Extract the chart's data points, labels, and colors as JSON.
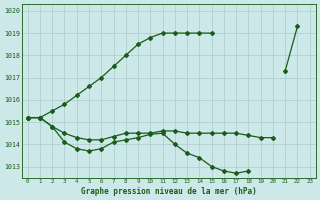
{
  "title": "Graphe pression niveau de la mer (hPa)",
  "background_color": "#cce8e8",
  "grid_color": "#aacccc",
  "line_color": "#1a5c1a",
  "ylim": [
    1012.5,
    1020.3
  ],
  "y_ticks": [
    1013,
    1014,
    1015,
    1016,
    1017,
    1018,
    1019,
    1020
  ],
  "x_ticks": [
    0,
    1,
    2,
    3,
    4,
    5,
    6,
    7,
    8,
    9,
    10,
    11,
    12,
    13,
    14,
    15,
    16,
    17,
    18,
    19,
    20,
    21,
    22,
    23
  ],
  "series": [
    {
      "x": [
        0,
        1,
        2,
        3,
        4,
        5,
        6,
        7,
        8,
        9,
        10,
        11,
        12,
        13,
        14,
        15,
        16,
        17,
        18,
        19,
        20,
        21,
        22,
        23
      ],
      "y": [
        1015.2,
        1015.2,
        1014.8,
        1014.1,
        1013.8,
        1013.7,
        1013.8,
        1014.1,
        1014.2,
        1014.3,
        1014.45,
        1014.5,
        1014.0,
        1013.6,
        1013.4,
        1013.0,
        1012.8,
        1012.7,
        1012.8,
        null,
        null,
        null,
        null,
        null
      ]
    },
    {
      "x": [
        0,
        1,
        2,
        3,
        4,
        5,
        6,
        7,
        8,
        9,
        10,
        11,
        12,
        13,
        14,
        15,
        16,
        17,
        18,
        19,
        20,
        21,
        22,
        23
      ],
      "y": [
        1015.2,
        1015.2,
        1014.8,
        1014.5,
        1014.3,
        1014.2,
        1014.2,
        1014.35,
        1014.5,
        1014.5,
        1014.5,
        1014.6,
        1014.6,
        1014.5,
        1014.5,
        1014.5,
        1014.5,
        1014.5,
        1014.4,
        1014.3,
        1014.3,
        null,
        null,
        null
      ]
    },
    {
      "x": [
        0,
        1,
        2,
        3,
        4,
        5,
        6,
        7,
        8,
        9,
        10,
        11,
        12,
        13,
        14,
        15,
        16,
        17,
        18,
        19,
        20,
        21,
        22
      ],
      "y": [
        1015.2,
        1015.2,
        1015.5,
        1015.8,
        1016.2,
        1016.6,
        1017.0,
        1017.5,
        1018.0,
        1018.5,
        1018.8,
        1019.0,
        1019.0,
        1019.0,
        1019.0,
        1019.0,
        null,
        null,
        null,
        null,
        null,
        1017.3,
        1019.3
      ]
    }
  ]
}
